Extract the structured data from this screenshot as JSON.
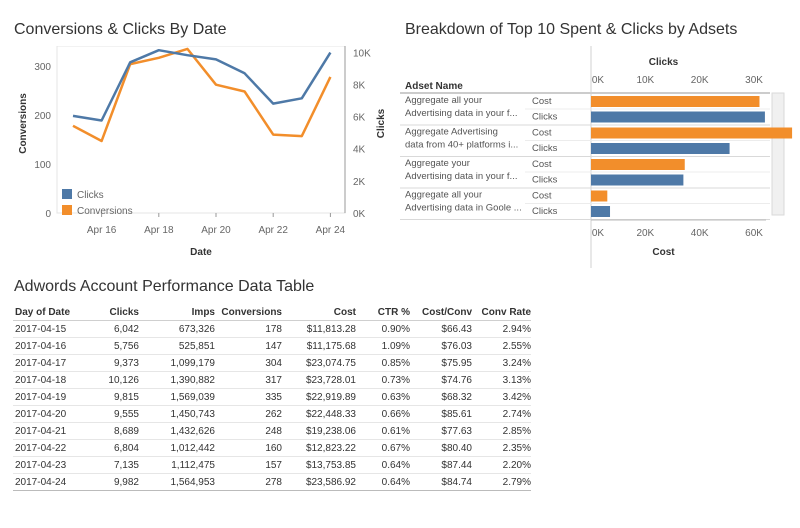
{
  "colors": {
    "clicks": "#4e79a7",
    "conversions": "#f28e2b"
  },
  "chart_data": [
    {
      "type": "line",
      "title": "Conversions & Clicks By Date",
      "xlabel": "Date",
      "ylabel_left": "Conversions",
      "ylabel_right": "Clicks",
      "x_ticks": [
        "Apr 16",
        "Apr 18",
        "Apr 20",
        "Apr 22",
        "Apr 24"
      ],
      "x": [
        "2017-04-15",
        "2017-04-16",
        "2017-04-17",
        "2017-04-18",
        "2017-04-19",
        "2017-04-20",
        "2017-04-21",
        "2017-04-22",
        "2017-04-23",
        "2017-04-24"
      ],
      "y_left_ticks": [
        "0",
        "100",
        "200",
        "300"
      ],
      "y_right_ticks": [
        "0K",
        "2K",
        "4K",
        "6K",
        "8K",
        "10K"
      ],
      "ylim_left": [
        0,
        341
      ],
      "ylim_right": [
        0,
        10390
      ],
      "legend": "bottom-left",
      "series": [
        {
          "name": "Clicks",
          "axis": "right",
          "color": "#4e79a7",
          "values": [
            6042,
            5756,
            9373,
            10126,
            9815,
            9555,
            8689,
            6804,
            7135,
            9982
          ]
        },
        {
          "name": "Conversions",
          "axis": "left",
          "color": "#f28e2b",
          "values": [
            178,
            147,
            304,
            317,
            335,
            262,
            248,
            160,
            157,
            278
          ]
        }
      ]
    },
    {
      "type": "bar",
      "orientation": "horizontal",
      "title": "Breakdown of Top 10 Spent & Clicks by Adsets",
      "row_header": "Adset Name",
      "top_axis_label": "Clicks",
      "top_ticks": [
        "0K",
        "10K",
        "20K",
        "30K"
      ],
      "top_lim": [
        0,
        32200
      ],
      "bottom_axis_label": "Cost",
      "bottom_ticks": [
        "0K",
        "20K",
        "40K",
        "60K"
      ],
      "bottom_lim": [
        0,
        64400
      ],
      "adsets": [
        {
          "name_lines": [
            "Aggregate all your",
            "Advertising data in your f..."
          ],
          "measures": [
            {
              "label": "Cost",
              "value": 62000,
              "color": "#f28e2b"
            },
            {
              "label": "Clicks",
              "value": 32000,
              "color": "#4e79a7"
            }
          ]
        },
        {
          "name_lines": [
            "Aggregate Advertising",
            "data from 40+ platforms i..."
          ],
          "measures": [
            {
              "label": "Cost",
              "value": 74000,
              "color": "#f28e2b"
            },
            {
              "label": "Clicks",
              "value": 25500,
              "color": "#4e79a7"
            }
          ]
        },
        {
          "name_lines": [
            "Aggregate your",
            "Advertising data in your f..."
          ],
          "measures": [
            {
              "label": "Cost",
              "value": 34500,
              "color": "#f28e2b"
            },
            {
              "label": "Clicks",
              "value": 17000,
              "color": "#4e79a7"
            }
          ]
        },
        {
          "name_lines": [
            "Aggregate all your",
            "Advertising data in Goole ..."
          ],
          "measures": [
            {
              "label": "Cost",
              "value": 6000,
              "color": "#f28e2b"
            },
            {
              "label": "Clicks",
              "value": 3500,
              "color": "#4e79a7"
            }
          ]
        }
      ]
    },
    {
      "type": "table",
      "title": "Adwords Account Performance Data Table",
      "columns": [
        "Day of Date",
        "Clicks",
        "Imps",
        "Conversions",
        "Cost",
        "CTR %",
        "Cost/Conv",
        "Conv Rate"
      ],
      "rows": [
        [
          "2017-04-15",
          "6,042",
          "673,326",
          "178",
          "$11,813.28",
          "0.90%",
          "$66.43",
          "2.94%"
        ],
        [
          "2017-04-16",
          "5,756",
          "525,851",
          "147",
          "$11,175.68",
          "1.09%",
          "$76.03",
          "2.55%"
        ],
        [
          "2017-04-17",
          "9,373",
          "1,099,179",
          "304",
          "$23,074.75",
          "0.85%",
          "$75.95",
          "3.24%"
        ],
        [
          "2017-04-18",
          "10,126",
          "1,390,882",
          "317",
          "$23,728.01",
          "0.73%",
          "$74.76",
          "3.13%"
        ],
        [
          "2017-04-19",
          "9,815",
          "1,569,039",
          "335",
          "$22,919.89",
          "0.63%",
          "$68.32",
          "3.42%"
        ],
        [
          "2017-04-20",
          "9,555",
          "1,450,743",
          "262",
          "$22,448.33",
          "0.66%",
          "$85.61",
          "2.74%"
        ],
        [
          "2017-04-21",
          "8,689",
          "1,432,626",
          "248",
          "$19,238.06",
          "0.61%",
          "$77.63",
          "2.85%"
        ],
        [
          "2017-04-22",
          "6,804",
          "1,012,442",
          "160",
          "$12,823.22",
          "0.67%",
          "$80.40",
          "2.35%"
        ],
        [
          "2017-04-23",
          "7,135",
          "1,112,475",
          "157",
          "$13,753.85",
          "0.64%",
          "$87.44",
          "2.20%"
        ],
        [
          "2017-04-24",
          "9,982",
          "1,564,953",
          "278",
          "$23,586.92",
          "0.64%",
          "$84.74",
          "2.79%"
        ]
      ]
    }
  ]
}
